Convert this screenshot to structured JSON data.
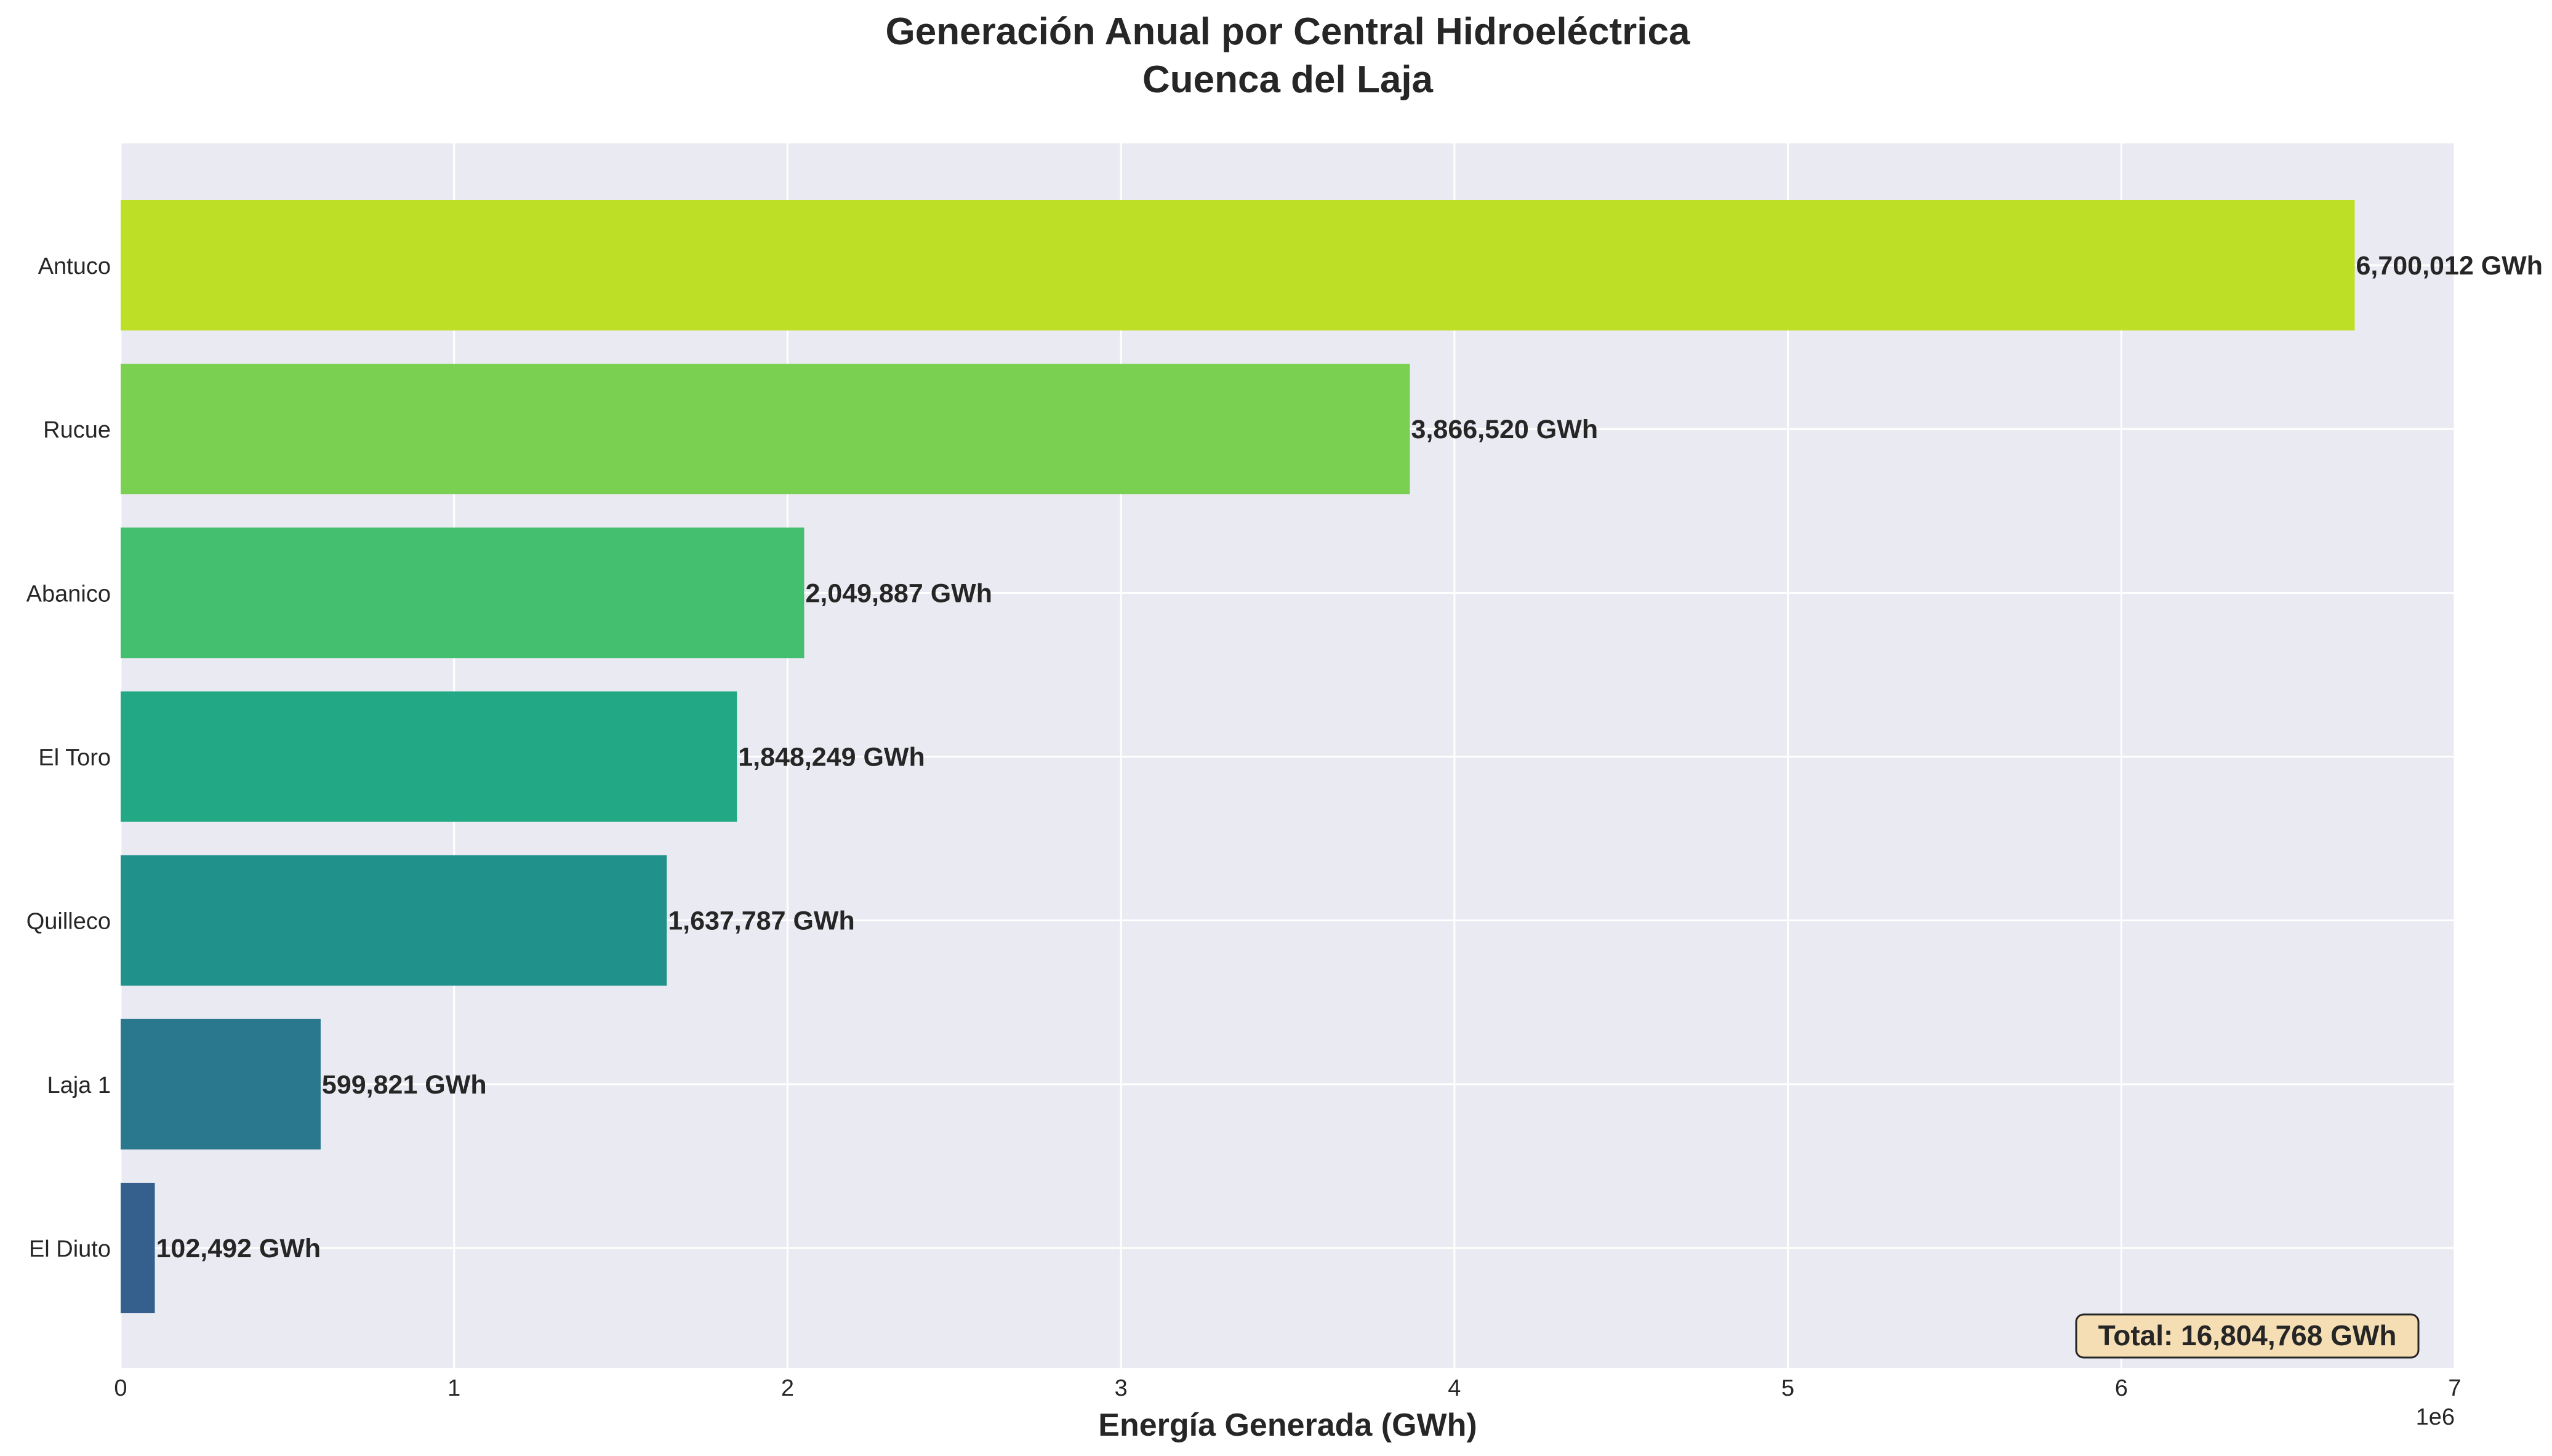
{
  "chart_data": {
    "type": "bar",
    "orientation": "horizontal",
    "title_line1": "Generación Anual por Central Hidroeléctrica",
    "title_line2": "Cuenca del Laja",
    "xlabel": "Energía Generada (GWh)",
    "x_offset_label": "1e6",
    "xlim": [
      0,
      7000000
    ],
    "x_ticks": [
      0,
      1,
      2,
      3,
      4,
      5,
      6,
      7
    ],
    "grid": true,
    "categories": [
      "Antuco",
      "Rucue",
      "Abanico",
      "El Toro",
      "Quilleco",
      "Laja 1",
      "El Diuto"
    ],
    "values": [
      6700012,
      3866520,
      2049887,
      1848249,
      1637787,
      599821,
      102492
    ],
    "value_labels": [
      "6,700,012 GWh",
      "3,866,520 GWh",
      "2,049,887 GWh",
      "1,848,249 GWh",
      "1,637,787 GWh",
      "599,821 GWh",
      "102,492 GWh"
    ],
    "colors": [
      "#bddf26",
      "#7ad151",
      "#44bf70",
      "#22a884",
      "#21918c",
      "#2a788e",
      "#355f8d"
    ],
    "total_label": "Total: 16,804,768 GWh",
    "total_box_fill": "#f5deb3",
    "plot_background": "#eaeaf2"
  }
}
